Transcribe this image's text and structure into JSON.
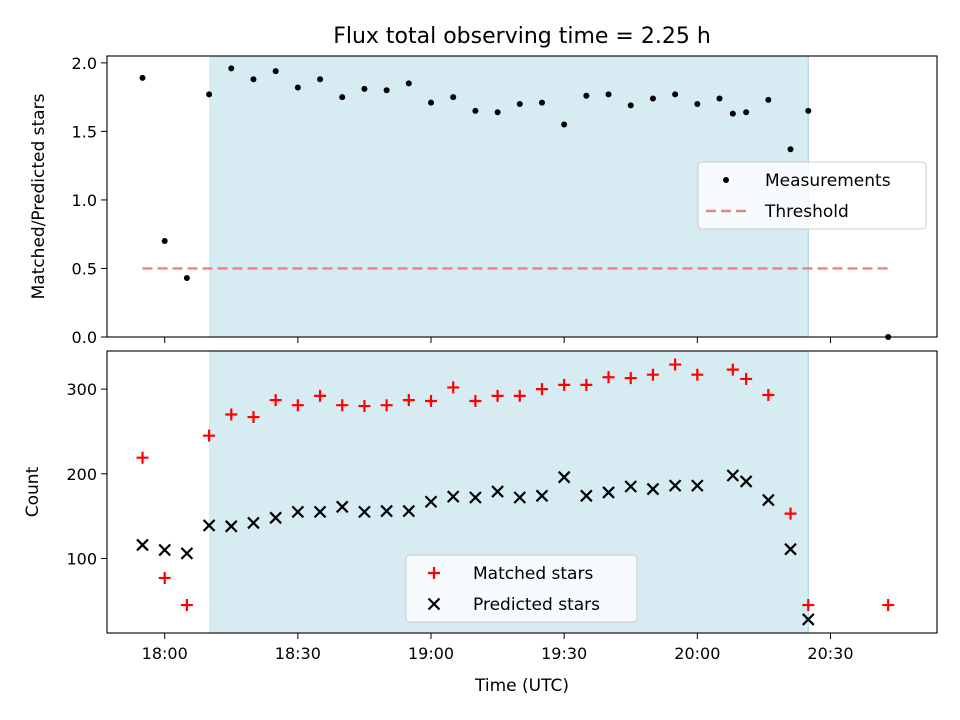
{
  "chart_data": [
    {
      "type": "scatter",
      "title": "Flux total observing time = 2.25 h",
      "xlabel": "",
      "ylabel": "Matched/Predicted stars",
      "xlim": [
        "17:47",
        "20:54"
      ],
      "ylim": [
        0,
        2.05
      ],
      "yticks": [
        0.0,
        0.5,
        1.0,
        1.5,
        2.0
      ],
      "ytick_labels": [
        "0.0",
        "0.5",
        "1.0",
        "1.5",
        "2.0"
      ],
      "xticks": [
        "18:00",
        "18:30",
        "19:00",
        "19:30",
        "20:00",
        "20:30"
      ],
      "xtick_labels_visible": false,
      "shaded_region": {
        "start": "18:10",
        "end": "20:25",
        "color": "#add8e6"
      },
      "grid": false,
      "legend_position": "center-right",
      "series": [
        {
          "name": "Measurements",
          "kind": "scatter",
          "marker": "dot",
          "color": "#000000",
          "x": [
            "17:55",
            "18:00",
            "18:05",
            "18:10",
            "18:15",
            "18:20",
            "18:25",
            "18:30",
            "18:35",
            "18:40",
            "18:45",
            "18:50",
            "18:55",
            "19:00",
            "19:05",
            "19:10",
            "19:15",
            "19:20",
            "19:25",
            "19:30",
            "19:35",
            "19:40",
            "19:45",
            "19:50",
            "19:55",
            "20:00",
            "20:05",
            "20:08",
            "20:11",
            "20:16",
            "20:21",
            "20:25",
            "20:43"
          ],
          "y": [
            1.89,
            0.7,
            0.43,
            1.77,
            1.96,
            1.88,
            1.94,
            1.82,
            1.88,
            1.75,
            1.81,
            1.8,
            1.85,
            1.71,
            1.75,
            1.65,
            1.64,
            1.7,
            1.71,
            1.55,
            1.76,
            1.77,
            1.69,
            1.74,
            1.77,
            1.7,
            1.74,
            1.63,
            1.64,
            1.73,
            1.37,
            1.65,
            0.0
          ]
        },
        {
          "name": "Threshold",
          "kind": "line",
          "dash": true,
          "color": "#f08080",
          "x": [
            "17:55",
            "20:43"
          ],
          "y": [
            0.5,
            0.5
          ]
        }
      ]
    },
    {
      "type": "scatter",
      "title": "",
      "xlabel": "Time (UTC)",
      "ylabel": "Count",
      "xlim": [
        "17:47",
        "20:54"
      ],
      "ylim": [
        12,
        345
      ],
      "yticks": [
        100,
        200,
        300
      ],
      "ytick_labels": [
        "100",
        "200",
        "300"
      ],
      "xticks": [
        "18:00",
        "18:30",
        "19:00",
        "19:30",
        "20:00",
        "20:30"
      ],
      "xtick_labels": [
        "18:00",
        "18:30",
        "19:00",
        "19:30",
        "20:00",
        "20:30"
      ],
      "shaded_region": {
        "start": "18:10",
        "end": "20:25",
        "color": "#add8e6"
      },
      "grid": false,
      "legend_position": "lower-center",
      "series": [
        {
          "name": "Matched stars",
          "kind": "scatter",
          "marker": "plus",
          "color": "#ff0000",
          "x": [
            "17:55",
            "18:00",
            "18:05",
            "18:10",
            "18:15",
            "18:20",
            "18:25",
            "18:30",
            "18:35",
            "18:40",
            "18:45",
            "18:50",
            "18:55",
            "19:00",
            "19:05",
            "19:10",
            "19:15",
            "19:20",
            "19:25",
            "19:30",
            "19:35",
            "19:40",
            "19:45",
            "19:50",
            "19:55",
            "20:00",
            "20:08",
            "20:11",
            "20:16",
            "20:21",
            "20:25",
            "20:43"
          ],
          "y": [
            219,
            77,
            45,
            245,
            270,
            267,
            287,
            281,
            292,
            281,
            280,
            281,
            287,
            286,
            302,
            286,
            292,
            292,
            300,
            305,
            305,
            314,
            313,
            317,
            329,
            317,
            323,
            312,
            293,
            153,
            45,
            45
          ]
        },
        {
          "name": "Predicted stars",
          "kind": "scatter",
          "marker": "x",
          "color": "#000000",
          "x": [
            "17:55",
            "18:00",
            "18:05",
            "18:10",
            "18:15",
            "18:20",
            "18:25",
            "18:30",
            "18:35",
            "18:40",
            "18:45",
            "18:50",
            "18:55",
            "19:00",
            "19:05",
            "19:10",
            "19:15",
            "19:20",
            "19:25",
            "19:30",
            "19:35",
            "19:40",
            "19:45",
            "19:50",
            "19:55",
            "20:00",
            "20:08",
            "20:11",
            "20:16",
            "20:21",
            "20:25"
          ],
          "y": [
            116,
            110,
            106,
            139,
            138,
            142,
            148,
            155,
            155,
            161,
            155,
            156,
            156,
            167,
            173,
            172,
            179,
            172,
            174,
            196,
            174,
            178,
            185,
            182,
            186,
            186,
            198,
            191,
            169,
            111,
            28
          ]
        }
      ]
    }
  ]
}
